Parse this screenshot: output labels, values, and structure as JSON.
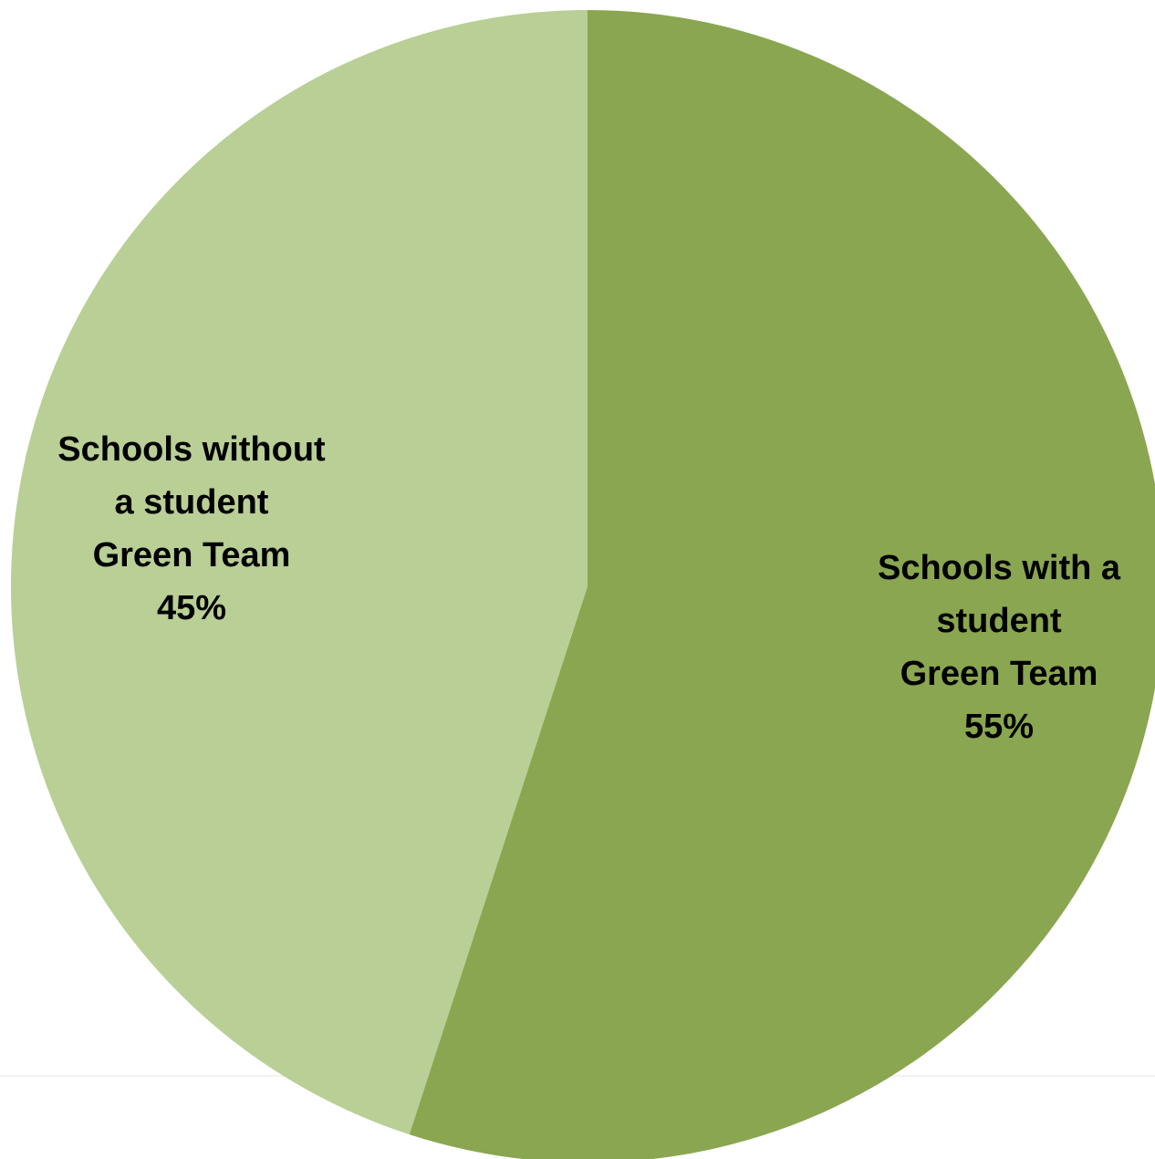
{
  "chart_data": {
    "type": "pie",
    "slices": [
      {
        "label_lines": [
          "Schools with a",
          "student",
          "Green Team"
        ],
        "value": 55,
        "value_label": "55%",
        "color": "#8aa650"
      },
      {
        "label_lines": [
          "Schools without",
          "a student",
          "Green Team"
        ],
        "value": 45,
        "value_label": "45%",
        "color": "#b9cf96"
      }
    ],
    "start_angle_deg": 0,
    "direction": "clockwise"
  }
}
